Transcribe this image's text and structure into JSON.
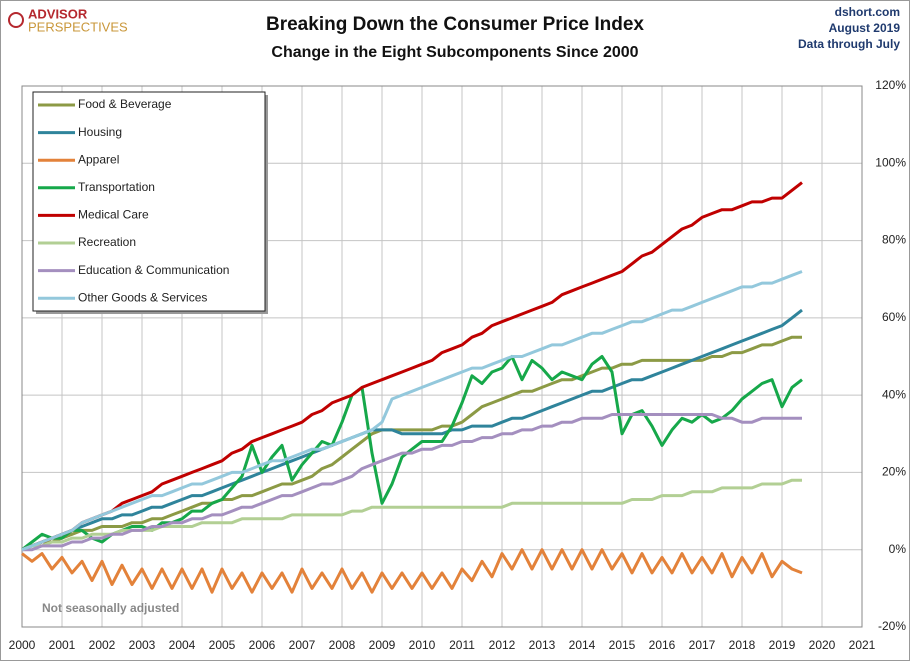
{
  "brand": {
    "line1": "ADVISOR",
    "line2": "PERSPECTIVES"
  },
  "chart_data": {
    "type": "line",
    "title": "Breaking Down the Consumer Price Index",
    "subtitle": "Change in the Eight Subcomponents  Since 2000",
    "source": [
      "dshort.com",
      "August  2019",
      "Data through July"
    ],
    "annotation": "Not seasonally adjusted",
    "grid": true,
    "legend": "upper-left",
    "xlim": [
      2000,
      2021
    ],
    "xticks": [
      2000,
      2001,
      2002,
      2003,
      2004,
      2005,
      2006,
      2007,
      2008,
      2009,
      2010,
      2011,
      2012,
      2013,
      2014,
      2015,
      2016,
      2017,
      2018,
      2019,
      2020,
      2021
    ],
    "ylim": [
      -20,
      120
    ],
    "yticks": [
      {
        "value": -20,
        "label": "-20%"
      },
      {
        "value": 0,
        "label": "0%"
      },
      {
        "value": 20,
        "label": "20%"
      },
      {
        "value": 40,
        "label": "40%"
      },
      {
        "value": 60,
        "label": "60%"
      },
      {
        "value": 80,
        "label": "80%"
      },
      {
        "value": 100,
        "label": "100%"
      },
      {
        "value": 120,
        "label": "120%"
      }
    ],
    "x": [
      2000,
      2000.25,
      2000.5,
      2000.75,
      2001,
      2001.25,
      2001.5,
      2001.75,
      2002,
      2002.25,
      2002.5,
      2002.75,
      2003,
      2003.25,
      2003.5,
      2003.75,
      2004,
      2004.25,
      2004.5,
      2004.75,
      2005,
      2005.25,
      2005.5,
      2005.75,
      2006,
      2006.25,
      2006.5,
      2006.75,
      2007,
      2007.25,
      2007.5,
      2007.75,
      2008,
      2008.25,
      2008.5,
      2008.75,
      2009,
      2009.25,
      2009.5,
      2009.75,
      2010,
      2010.25,
      2010.5,
      2010.75,
      2011,
      2011.25,
      2011.5,
      2011.75,
      2012,
      2012.25,
      2012.5,
      2012.75,
      2013,
      2013.25,
      2013.5,
      2013.75,
      2014,
      2014.25,
      2014.5,
      2014.75,
      2015,
      2015.25,
      2015.5,
      2015.75,
      2016,
      2016.25,
      2016.5,
      2016.75,
      2017,
      2017.25,
      2017.5,
      2017.75,
      2018,
      2018.25,
      2018.5,
      2018.75,
      2019,
      2019.25,
      2019.5
    ],
    "series": [
      {
        "name": "Food & Beverage",
        "color": "#8c9a45",
        "values": [
          0,
          1,
          2,
          2,
          3,
          4,
          5,
          5,
          6,
          6,
          6,
          7,
          7,
          8,
          8,
          9,
          10,
          11,
          12,
          12,
          13,
          13,
          14,
          14,
          15,
          16,
          17,
          17,
          18,
          19,
          21,
          22,
          24,
          26,
          28,
          30,
          31,
          31,
          31,
          31,
          31,
          31,
          32,
          32,
          33,
          35,
          37,
          38,
          39,
          40,
          41,
          41,
          42,
          43,
          44,
          44,
          45,
          46,
          47,
          47,
          48,
          48,
          49,
          49,
          49,
          49,
          49,
          49,
          49,
          50,
          50,
          51,
          51,
          52,
          53,
          53,
          54,
          55,
          55
        ]
      },
      {
        "name": "Housing",
        "color": "#2f849b",
        "values": [
          0,
          1,
          2,
          3,
          4,
          5,
          6,
          7,
          8,
          8,
          9,
          9,
          10,
          11,
          11,
          12,
          13,
          14,
          14,
          15,
          16,
          17,
          18,
          19,
          20,
          21,
          22,
          23,
          24,
          25,
          26,
          27,
          28,
          29,
          30,
          31,
          31,
          31,
          30,
          30,
          30,
          30,
          30,
          31,
          31,
          32,
          32,
          32,
          33,
          34,
          34,
          35,
          36,
          37,
          38,
          39,
          40,
          41,
          41,
          42,
          43,
          44,
          44,
          45,
          46,
          47,
          48,
          49,
          50,
          51,
          52,
          53,
          54,
          55,
          56,
          57,
          58,
          60,
          62
        ]
      },
      {
        "name": "Apparel",
        "color": "#e3823a",
        "values": [
          -1,
          -3,
          -1,
          -5,
          -2,
          -6,
          -3,
          -8,
          -3,
          -9,
          -4,
          -9,
          -5,
          -10,
          -5,
          -10,
          -5,
          -10,
          -5,
          -11,
          -5,
          -10,
          -6,
          -11,
          -6,
          -10,
          -6,
          -11,
          -5,
          -10,
          -6,
          -10,
          -5,
          -10,
          -6,
          -11,
          -6,
          -10,
          -6,
          -10,
          -6,
          -10,
          -6,
          -10,
          -5,
          -8,
          -3,
          -7,
          -1,
          -5,
          0,
          -5,
          0,
          -5,
          0,
          -5,
          0,
          -5,
          0,
          -5,
          -1,
          -6,
          -1,
          -6,
          -2,
          -6,
          -1,
          -6,
          -2,
          -6,
          -1,
          -7,
          -2,
          -6,
          -1,
          -7,
          -3,
          -5,
          -6
        ]
      },
      {
        "name": "Transportation",
        "color": "#16a84a",
        "values": [
          0,
          2,
          4,
          3,
          3,
          5,
          5,
          3,
          2,
          4,
          5,
          6,
          6,
          5,
          7,
          7,
          8,
          10,
          10,
          12,
          13,
          16,
          19,
          27,
          20,
          24,
          27,
          18,
          22,
          25,
          28,
          27,
          33,
          40,
          42,
          25,
          12,
          17,
          24,
          26,
          28,
          28,
          28,
          32,
          38,
          45,
          43,
          46,
          47,
          50,
          44,
          49,
          47,
          44,
          46,
          45,
          44,
          48,
          50,
          46,
          30,
          35,
          36,
          32,
          27,
          31,
          34,
          33,
          35,
          33,
          34,
          36,
          39,
          41,
          43,
          44,
          37,
          42,
          44
        ]
      },
      {
        "name": "Medical Care",
        "color": "#c00000",
        "values": [
          0,
          1,
          2,
          3,
          4,
          5,
          7,
          8,
          9,
          10,
          12,
          13,
          14,
          15,
          17,
          18,
          19,
          20,
          21,
          22,
          23,
          25,
          26,
          28,
          29,
          30,
          31,
          32,
          33,
          35,
          36,
          38,
          39,
          40,
          42,
          43,
          44,
          45,
          46,
          47,
          48,
          49,
          51,
          52,
          53,
          55,
          56,
          58,
          59,
          60,
          61,
          62,
          63,
          64,
          66,
          67,
          68,
          69,
          70,
          71,
          72,
          74,
          76,
          77,
          79,
          81,
          83,
          84,
          86,
          87,
          88,
          88,
          89,
          90,
          90,
          91,
          91,
          93,
          95
        ]
      },
      {
        "name": "Recreation",
        "color": "#b2cf94",
        "values": [
          0,
          1,
          1,
          2,
          2,
          3,
          3,
          4,
          4,
          4,
          5,
          5,
          5,
          5,
          6,
          6,
          6,
          6,
          7,
          7,
          7,
          7,
          8,
          8,
          8,
          8,
          8,
          9,
          9,
          9,
          9,
          9,
          9,
          10,
          10,
          11,
          11,
          11,
          11,
          11,
          11,
          11,
          11,
          11,
          11,
          11,
          11,
          11,
          11,
          12,
          12,
          12,
          12,
          12,
          12,
          12,
          12,
          12,
          12,
          12,
          12,
          13,
          13,
          13,
          14,
          14,
          14,
          15,
          15,
          15,
          16,
          16,
          16,
          16,
          17,
          17,
          17,
          18,
          18
        ]
      },
      {
        "name": "Education & Communication",
        "color": "#a48fbf",
        "values": [
          0,
          0,
          1,
          1,
          1,
          2,
          2,
          3,
          3,
          4,
          4,
          5,
          5,
          6,
          6,
          7,
          7,
          8,
          8,
          9,
          9,
          10,
          11,
          11,
          12,
          13,
          14,
          14,
          15,
          16,
          17,
          17,
          18,
          19,
          21,
          22,
          23,
          24,
          25,
          25,
          26,
          26,
          27,
          27,
          28,
          28,
          29,
          29,
          30,
          30,
          31,
          31,
          32,
          32,
          33,
          33,
          34,
          34,
          34,
          35,
          35,
          35,
          35,
          35,
          35,
          35,
          35,
          35,
          35,
          35,
          34,
          34,
          33,
          33,
          34,
          34,
          34,
          34,
          34
        ]
      },
      {
        "name": "Other Goods & Services",
        "color": "#93c8dc",
        "values": [
          0,
          1,
          2,
          3,
          4,
          5,
          7,
          8,
          9,
          10,
          11,
          12,
          13,
          14,
          14,
          15,
          16,
          17,
          17,
          18,
          19,
          20,
          20,
          21,
          22,
          23,
          23,
          24,
          25,
          26,
          26,
          27,
          28,
          29,
          30,
          31,
          33,
          39,
          40,
          41,
          42,
          43,
          44,
          45,
          46,
          47,
          47,
          48,
          49,
          50,
          50,
          51,
          52,
          53,
          53,
          54,
          55,
          56,
          56,
          57,
          58,
          59,
          59,
          60,
          61,
          62,
          62,
          63,
          64,
          65,
          66,
          67,
          68,
          68,
          69,
          69,
          70,
          71,
          72
        ]
      }
    ]
  }
}
